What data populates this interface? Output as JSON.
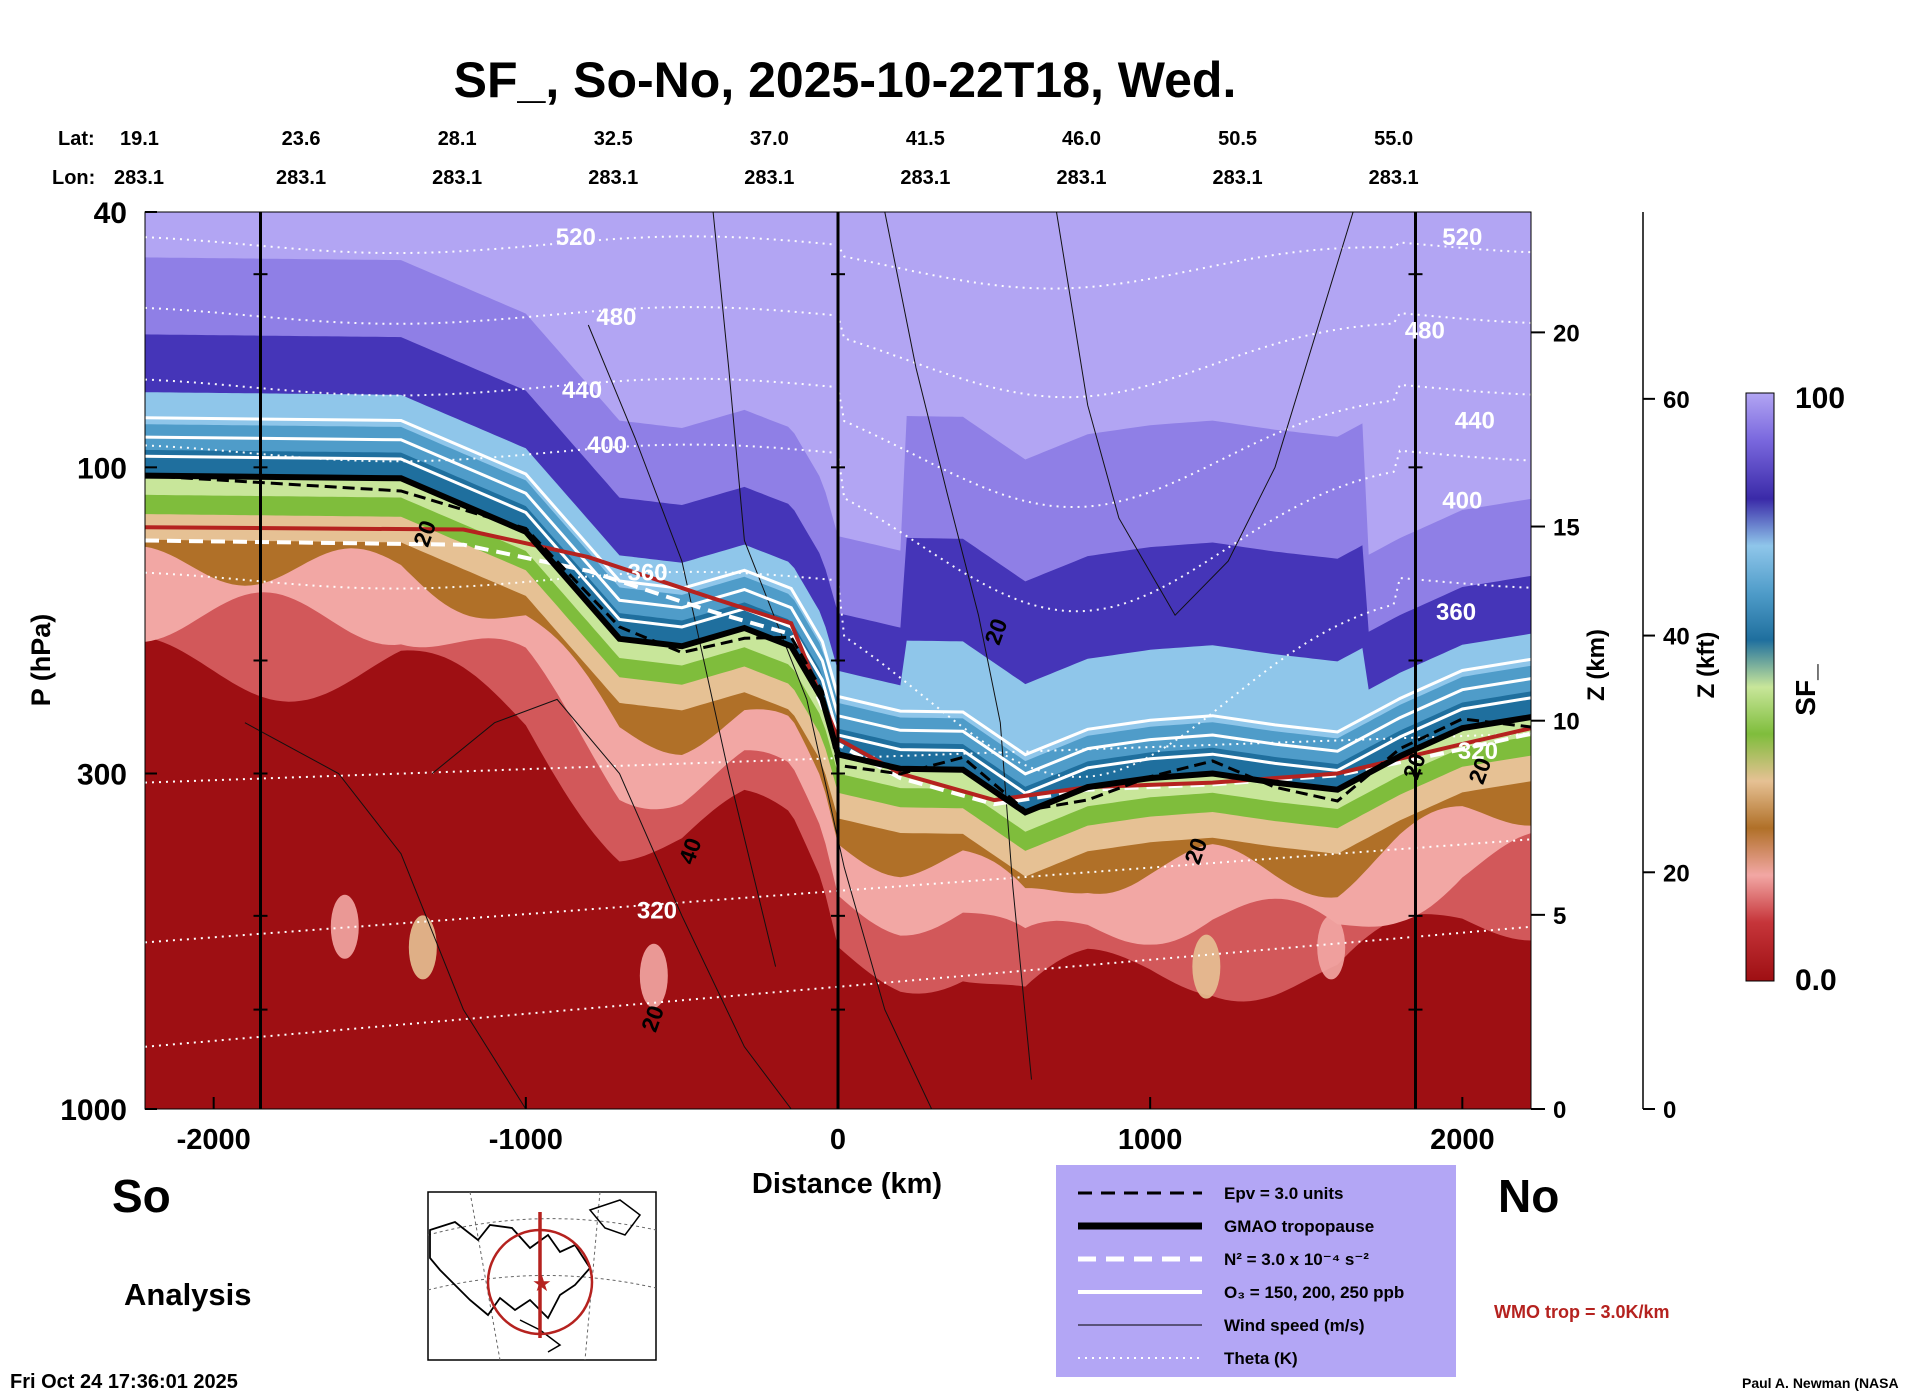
{
  "chart_data": {
    "type": "heatmap",
    "title": "SF_, So-No, 2025-10-22T18, Wed.",
    "xlabel": "Distance (km)",
    "ylabel_left": "P (hPa)",
    "ylabel_right_km": "Z (km)",
    "ylabel_right_kft": "Z (kft)",
    "xlim": [
      -2220,
      2220
    ],
    "x_ticks": [
      -2000,
      -1000,
      0,
      1000,
      2000
    ],
    "x_tick_labels": [
      "-2000",
      "-1000",
      "0",
      "1000",
      "2000"
    ],
    "ylim_hpa": [
      1000,
      40
    ],
    "p_ticks": [
      40,
      100,
      300,
      1000
    ],
    "p_tick_labels": [
      "40",
      "100",
      "300",
      "1000"
    ],
    "z_km_ticks": [
      0,
      5,
      10,
      15,
      20
    ],
    "z_km_tick_labels": [
      "0",
      "5",
      "10",
      "15",
      "20"
    ],
    "z_kft_ticks": [
      0,
      20,
      40,
      60
    ],
    "z_kft_tick_labels": [
      "0",
      "20",
      "40",
      "60"
    ],
    "lat_label": "Lat:",
    "lon_label": "Lon:",
    "lat_values": [
      "19.1",
      "23.6",
      "28.1",
      "32.5",
      "37.0",
      "41.5",
      "46.0",
      "50.5",
      "55.0"
    ],
    "lon_values": [
      "283.1",
      "283.1",
      "283.1",
      "283.1",
      "283.1",
      "283.1",
      "283.1",
      "283.1",
      "283.1"
    ],
    "lat_lon_x": [
      -2220,
      -1720,
      -1220,
      -720,
      -220,
      280,
      780,
      1280,
      1780
    ],
    "vertical_lines_x": [
      -1850,
      0,
      1850
    ],
    "colorbar": {
      "min_label": "0.0",
      "max_label": "100",
      "label": "SF_"
    },
    "theta_labels": [
      {
        "x": -840,
        "p": 45,
        "text": "520"
      },
      {
        "x": 2000,
        "p": 45,
        "text": "520"
      },
      {
        "x": -710,
        "p": 60,
        "text": "480"
      },
      {
        "x": 1880,
        "p": 63,
        "text": "480"
      },
      {
        "x": -820,
        "p": 78,
        "text": "440"
      },
      {
        "x": 2040,
        "p": 87,
        "text": "440"
      },
      {
        "x": -740,
        "p": 95,
        "text": "400"
      },
      {
        "x": 2000,
        "p": 116,
        "text": "400"
      },
      {
        "x": -610,
        "p": 150,
        "text": "360"
      },
      {
        "x": 1980,
        "p": 173,
        "text": "360"
      },
      {
        "x": -580,
        "p": 505,
        "text": "320"
      },
      {
        "x": 2050,
        "p": 285,
        "text": "320"
      }
    ],
    "wind_labels": [
      {
        "x": -1300,
        "p": 128,
        "text": "20"
      },
      {
        "x": 530,
        "p": 182,
        "text": "20"
      },
      {
        "x": -450,
        "p": 400,
        "text": "40"
      },
      {
        "x": 1170,
        "p": 400,
        "text": "20"
      },
      {
        "x": -570,
        "p": 730,
        "text": "20"
      },
      {
        "x": 1870,
        "p": 295,
        "text": "20"
      },
      {
        "x": 2080,
        "p": 300,
        "text": "20"
      }
    ],
    "tropopause_gmao": {
      "x": [
        -2220,
        -1400,
        -1000,
        -700,
        -500,
        -300,
        -150,
        -50,
        0,
        200,
        400,
        600,
        800,
        1000,
        1200,
        1400,
        1600,
        1800,
        2000,
        2220
      ],
      "p": [
        103,
        104,
        126,
        185,
        190,
        178,
        190,
        230,
        280,
        295,
        296,
        345,
        315,
        305,
        300,
        310,
        318,
        282,
        255,
        245
      ]
    },
    "wmo_tropopause": {
      "x": [
        -2220,
        -1200,
        -800,
        -400,
        -150,
        0,
        200,
        500,
        800,
        1200,
        1600,
        2000,
        2220
      ],
      "p": [
        124,
        125,
        138,
        160,
        175,
        265,
        300,
        330,
        315,
        310,
        300,
        270,
        255
      ]
    },
    "n2_line": {
      "x": [
        -2220,
        -1200,
        -800,
        -400,
        -150,
        0,
        200,
        500,
        800,
        1200,
        1600,
        2000,
        2220
      ],
      "p": [
        130,
        132,
        145,
        168,
        182,
        270,
        305,
        335,
        318,
        312,
        302,
        275,
        260
      ]
    },
    "legend": {
      "items": [
        {
          "label": "Epv = 3.0 units",
          "style": "dashed-black"
        },
        {
          "label": "GMAO tropopause",
          "style": "thick-black"
        },
        {
          "label": "N² = 3.0 x 10⁻⁴ s⁻²",
          "style": "dashed-white"
        },
        {
          "label": "O₃ = 150, 200, 250 ppb",
          "style": "solid-white"
        },
        {
          "label": "Wind speed (m/s)",
          "style": "thin-black"
        },
        {
          "label": "Theta (K)",
          "style": "dotted-white"
        }
      ],
      "background": "#b3a6f5"
    },
    "wmo_note": "WMO trop = 3.0K/km",
    "left_label": "So",
    "right_label": "No",
    "analysis_label": "Analysis",
    "timestamp": "Fri Oct 24 17:36:01 2025",
    "credit": "Paul A. Newman (NASA"
  },
  "colors": {
    "strat_top": "#b2a5f3",
    "strat_mid": "#8f7fe6",
    "strat_deep": "#4535b8",
    "blue_light": "#8fc6ea",
    "blue_mid": "#4f9cc9",
    "blue_dark": "#1f6f9e",
    "green_light": "#c8e69a",
    "green": "#7fbd3c",
    "tan": "#e6c194",
    "brown": "#b07028",
    "pink": "#f2a7a4",
    "red_mid": "#d2585a",
    "red_dark": "#9e0f13",
    "wmo_red": "#b5221f"
  }
}
